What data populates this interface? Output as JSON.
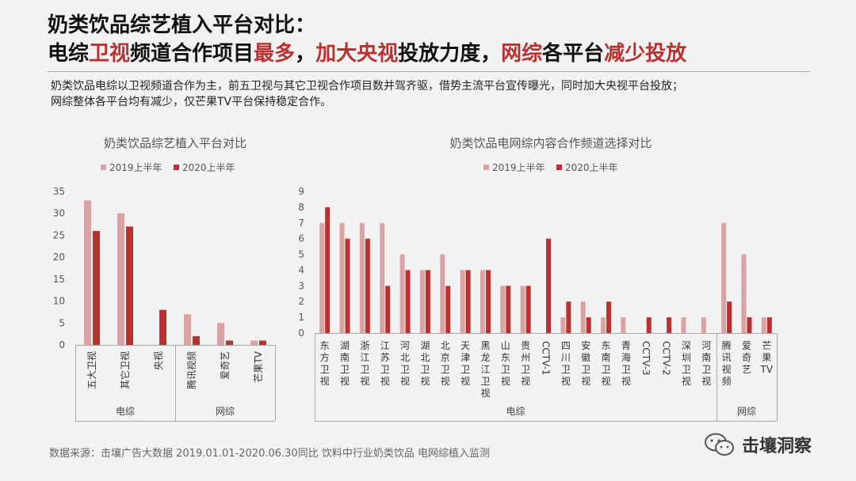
{
  "header": {
    "title_line1": "奶类饮品综艺植入平台对比：",
    "title_line2_parts": [
      {
        "text": "电综",
        "hl": false
      },
      {
        "text": "卫视",
        "hl": true
      },
      {
        "text": "频道合作项目",
        "hl": false
      },
      {
        "text": "最多",
        "hl": true
      },
      {
        "text": "，",
        "hl": false
      },
      {
        "text": "加大央视",
        "hl": true
      },
      {
        "text": "投放力度，",
        "hl": false
      },
      {
        "text": "网综",
        "hl": true
      },
      {
        "text": "各平台",
        "hl": false
      },
      {
        "text": "减少投放",
        "hl": true
      }
    ],
    "desc_line1": "奶类饮品电综以卫视频道合作为主，前五卫视与其它卫视合作项目数并驾齐驱，借势主流平台宣传曝光，同时加大央视平台投放；",
    "desc_line2": "网综整体各平台均有减少，仅芒果TV平台保持稳定合作。"
  },
  "colors": {
    "s2019": "#d9a3a3",
    "s2020": "#b83232",
    "highlight": "#b83232"
  },
  "chart_data": [
    {
      "type": "bar",
      "title": "奶类饮品综艺植入平台对比",
      "categories": [
        "五大卫视",
        "其它卫视",
        "央视",
        "腾讯视频",
        "爱奇艺",
        "芒果TV"
      ],
      "groups": [
        {
          "label": "电综",
          "count": 3
        },
        {
          "label": "网综",
          "count": 3
        }
      ],
      "series": [
        {
          "name": "2019上半年",
          "values": [
            33,
            30,
            0,
            7,
            5,
            1
          ]
        },
        {
          "name": "2020上半年",
          "values": [
            26,
            27,
            8,
            2,
            1,
            1
          ]
        }
      ],
      "yticks": [
        "0",
        "5",
        "10",
        "15",
        "20",
        "25",
        "30",
        "35"
      ],
      "ylim": [
        0,
        35
      ],
      "legend": "top"
    },
    {
      "type": "bar",
      "title": "奶类饮品电网综内容合作频道选择对比",
      "categories": [
        "东方卫视",
        "湖南卫视",
        "浙江卫视",
        "江苏卫视",
        "河北卫视",
        "湖北卫视",
        "北京卫视",
        "天津卫视",
        "黑龙江卫视",
        "山东卫视",
        "贵州卫视",
        "CCTV-1",
        "四川卫视",
        "安徽卫视",
        "东南卫视",
        "青海卫视",
        "CCTV-3",
        "CCTV-2",
        "深圳卫视",
        "河南卫视",
        "腾讯视频",
        "爱奇艺",
        "芒果TV"
      ],
      "groups": [
        {
          "label": "电综",
          "count": 20
        },
        {
          "label": "网综",
          "count": 3
        }
      ],
      "series": [
        {
          "name": "2019上半年",
          "values": [
            7,
            7,
            7,
            7,
            5,
            4,
            5,
            4,
            4,
            3,
            3,
            0,
            1,
            2,
            1,
            1,
            0,
            0,
            1,
            1,
            7,
            5,
            1
          ]
        },
        {
          "name": "2020上半年",
          "values": [
            8,
            6,
            6,
            3,
            4,
            4,
            3,
            4,
            4,
            3,
            3,
            6,
            2,
            1,
            2,
            0,
            1,
            1,
            0,
            0,
            2,
            1,
            1
          ]
        }
      ],
      "yticks": [
        "0",
        "1",
        "2",
        "3",
        "4",
        "5",
        "6",
        "7",
        "8",
        "9"
      ],
      "ylim": [
        0,
        9
      ],
      "legend": "top"
    }
  ],
  "footer": {
    "source": "数据来源：击壤广告大数据 2019.01.01-2020.06.30同比 饮料中行业奶类饮品 电网综植入监测",
    "brand": "击壤洞察"
  }
}
